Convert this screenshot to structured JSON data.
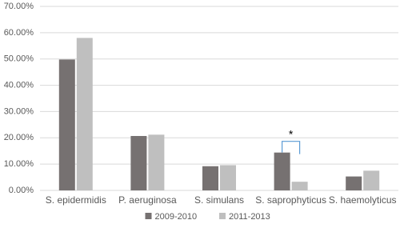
{
  "chart_data": {
    "type": "bar",
    "categories": [
      "S. epidermidis",
      "P. aeruginosa",
      "S. simulans",
      "S. saprophyticus",
      "S. haemolyticus"
    ],
    "series": [
      {
        "name": "2009-2010",
        "color": "#767171",
        "values": [
          49.8,
          20.7,
          9.2,
          14.4,
          5.3
        ]
      },
      {
        "name": "2011-2013",
        "color": "#bfbfbf",
        "values": [
          58.0,
          21.2,
          9.6,
          3.3,
          7.5
        ]
      }
    ],
    "ylim": [
      0,
      70
    ],
    "yticks": [
      {
        "value": 0,
        "label": "0.00%"
      },
      {
        "value": 10,
        "label": "10.00%"
      },
      {
        "value": 20,
        "label": "20.00%"
      },
      {
        "value": 30,
        "label": "30.00%"
      },
      {
        "value": 40,
        "label": "40.00%"
      },
      {
        "value": 50,
        "label": "50.00%"
      },
      {
        "value": 60,
        "label": "60.00%"
      },
      {
        "value": 70,
        "label": "70.00%"
      }
    ],
    "grid": true,
    "legend": "bottom",
    "annotation": "*"
  }
}
